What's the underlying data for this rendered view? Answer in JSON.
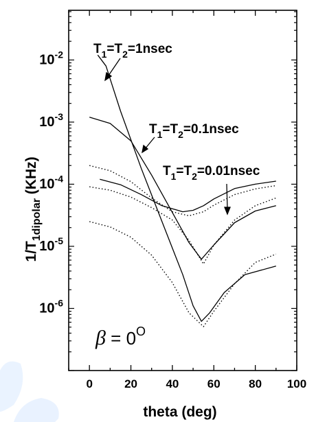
{
  "chart_data": {
    "type": "line",
    "xlabel": "theta (deg)",
    "ylabel": "1/T",
    "ylabel_sub": "1dipolar",
    "ylabel_unit": " (KHz)",
    "xlim": [
      -10,
      100
    ],
    "ylim_log10": [
      -7,
      -1.2
    ],
    "y_scale": "log",
    "x_ticks": [
      0,
      20,
      40,
      60,
      80,
      100
    ],
    "x_tick_labels": [
      "0",
      "20",
      "40",
      "60",
      "80",
      "100"
    ],
    "y_ticks_exp": [
      -6,
      -5,
      -4,
      -3,
      -2
    ],
    "y_tick_base": "10",
    "y_tick_exps": [
      "-6",
      "-5",
      "-4",
      "-3",
      "-2"
    ],
    "annotations": [
      {
        "id": "ann1",
        "parts": [
          "T",
          "1",
          "=T",
          "2",
          "=1nsec"
        ]
      },
      {
        "id": "ann2",
        "parts": [
          "T",
          "1",
          "=T",
          "2",
          "=0.1nsec"
        ]
      },
      {
        "id": "ann3",
        "parts": [
          "T",
          "1",
          "=T",
          "2",
          "=0.01nsec"
        ]
      }
    ],
    "beta_label": {
      "symbol": "β",
      "text": " = 0",
      "superscript": "O"
    },
    "series": [
      {
        "style": "solid",
        "x": [
          4,
          8,
          15,
          25,
          35,
          45,
          50,
          54,
          58,
          65,
          75,
          90
        ],
        "y": [
          0.012,
          0.008,
          0.0015,
          0.00018,
          2.5e-05,
          3.5e-06,
          1.1e-06,
          6.2e-07,
          8.5e-07,
          1.8e-06,
          3.5e-06,
          4.8e-06
        ]
      },
      {
        "style": "solid",
        "x": [
          0,
          10,
          20,
          30,
          40,
          48,
          54,
          60,
          70,
          80,
          90
        ],
        "y": [
          0.0012,
          0.00095,
          0.0005,
          0.00014,
          3.5e-05,
          1.15e-05,
          6.2e-06,
          1.05e-05,
          2.4e-05,
          3.7e-05,
          4.5e-05
        ]
      },
      {
        "style": "solid",
        "x": [
          5,
          15,
          25,
          35,
          45,
          50,
          55,
          60,
          70,
          80,
          90
        ],
        "y": [
          0.00012,
          9.8e-05,
          6.8e-05,
          4.5e-05,
          3.6e-05,
          3.8e-05,
          4.5e-05,
          5.8e-05,
          8.5e-05,
          0.0001,
          0.000112
        ]
      },
      {
        "style": "dotted",
        "x": [
          0,
          10,
          20,
          30,
          40,
          48,
          55,
          60,
          70,
          80,
          90
        ],
        "y": [
          0.0002,
          0.000165,
          0.00011,
          6e-05,
          3.6e-05,
          3.1e-05,
          3.6e-05,
          4.6e-05,
          6.8e-05,
          8.4e-05,
          9.5e-05
        ]
      },
      {
        "style": "dotted",
        "x": [
          0,
          10,
          20,
          30,
          40,
          48,
          55,
          60,
          70,
          80,
          90
        ],
        "y": [
          9.1e-05,
          8e-05,
          6.2e-05,
          4.2e-05,
          2.65e-05,
          1.25e-05,
          5.2e-06,
          1.05e-05,
          2.65e-05,
          4.5e-05,
          6e-05
        ]
      },
      {
        "style": "dotted",
        "x": [
          0,
          10,
          20,
          30,
          40,
          48,
          55,
          60,
          70,
          80,
          90
        ],
        "y": [
          2.5e-05,
          2.05e-05,
          1.4e-05,
          7.2e-06,
          2.6e-06,
          8.5e-07,
          5.1e-07,
          9e-07,
          2.5e-06,
          5.5e-06,
          7.5e-06
        ]
      }
    ]
  }
}
